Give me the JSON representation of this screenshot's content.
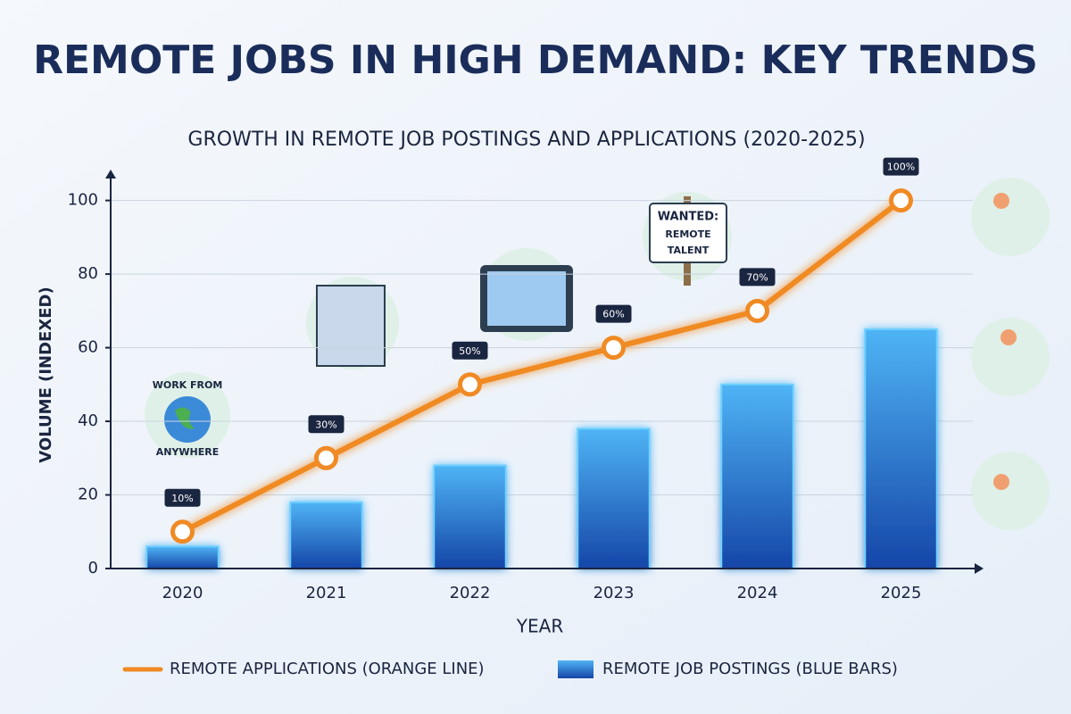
{
  "chart_data": {
    "type": "bar",
    "title": "REMOTE JOBS IN HIGH DEMAND: KEY TRENDS",
    "subtitle": "GROWTH IN REMOTE JOB POSTINGS AND APPLICATIONS (2020-2025)",
    "x_label": "YEAR",
    "y_label": "VOLUME (INDEXED)",
    "categories": [
      "2020",
      "2021",
      "2022",
      "2023",
      "2024",
      "2025"
    ],
    "series": [
      {
        "name": "REMOTE APPLICATIONS (ORANGE LINE)",
        "type": "line",
        "color": "#f08a24",
        "values": [
          10,
          30,
          50,
          60,
          70,
          100
        ],
        "value_labels": [
          "10%",
          "30%",
          "50%",
          "60%",
          "70%",
          "100%"
        ]
      },
      {
        "name": "REMOTE JOB POSTINGS (BLUE BARS)",
        "type": "bar",
        "color": "#1e6fd9",
        "values": [
          6,
          18,
          28,
          38,
          50,
          65
        ]
      }
    ],
    "ylim": [
      0,
      105
    ],
    "yticks": [
      0,
      20,
      40,
      60,
      80,
      100
    ],
    "grid": true,
    "legend": "bottom",
    "annotations": [
      "WORK FROM",
      "ANYWHERE",
      "WANTED:",
      "REMOTE",
      "TALENT"
    ]
  }
}
